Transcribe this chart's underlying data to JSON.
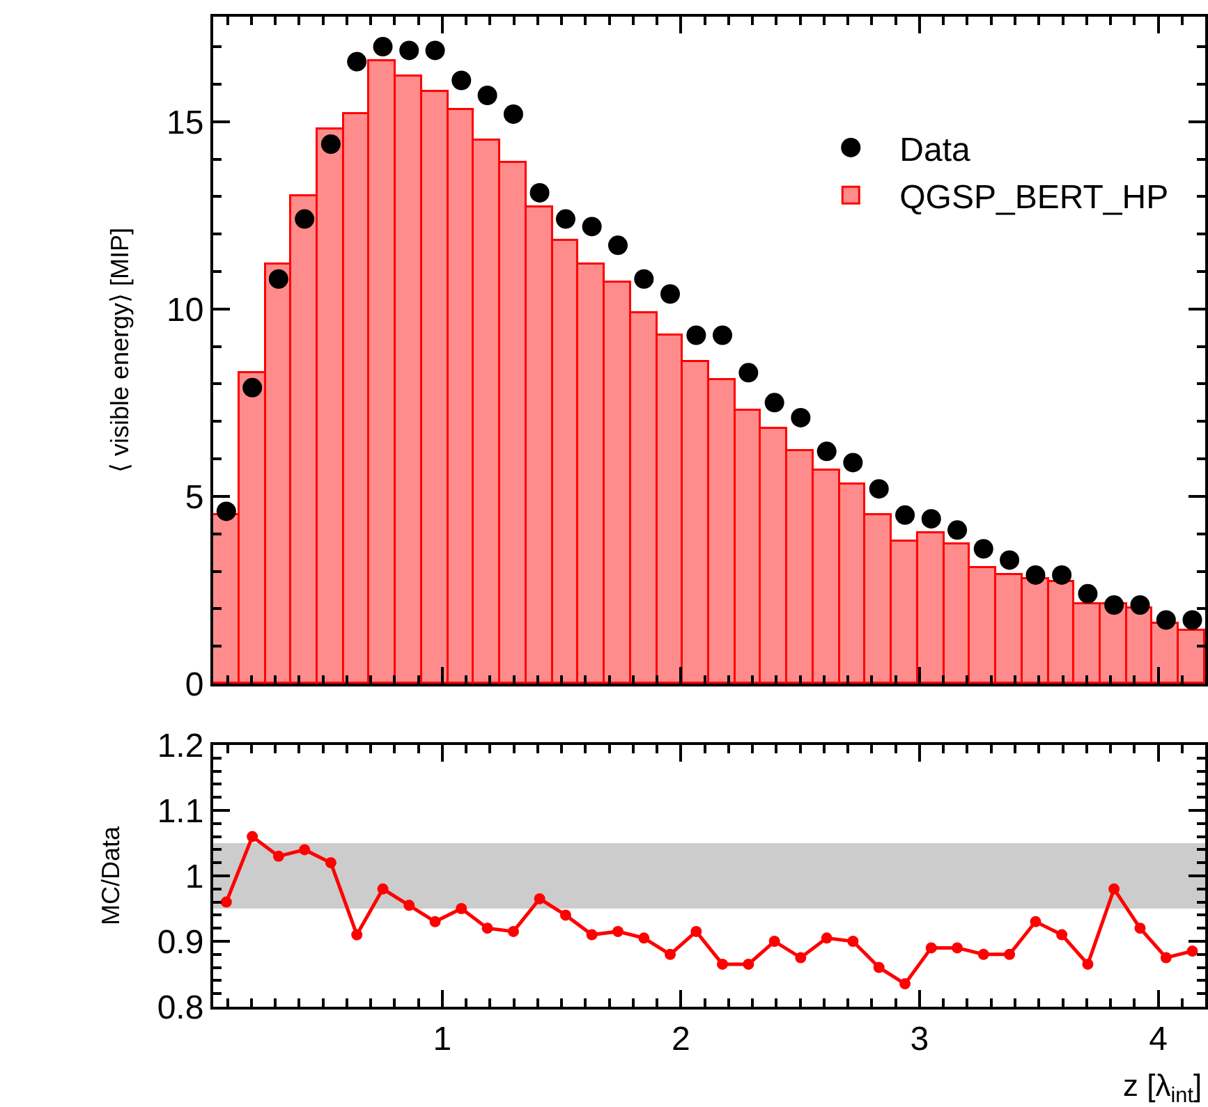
{
  "chart_data": [
    {
      "type": "histogram",
      "ylabel": "⟨ visible energy⟩ [MIP]",
      "bins": [
        0.04,
        0.149,
        0.259,
        0.368,
        0.478,
        0.587,
        0.696,
        0.806,
        0.915,
        1.025,
        1.134,
        1.243,
        1.353,
        1.462,
        1.572,
        1.681,
        1.79,
        1.9,
        2.009,
        2.119,
        2.228,
        2.337,
        2.447,
        2.556,
        2.666,
        2.775,
        2.884,
        2.994,
        3.103,
        3.213,
        3.322,
        3.431,
        3.541,
        3.65,
        3.76,
        3.869,
        3.978,
        4.088,
        4.197
      ],
      "series": [
        {
          "name": "Data",
          "type": "scatter",
          "color": "#000000",
          "marker": "circle",
          "x": [
            0.095,
            0.204,
            0.314,
            0.423,
            0.533,
            0.642,
            0.751,
            0.861,
            0.97,
            1.08,
            1.189,
            1.298,
            1.408,
            1.517,
            1.627,
            1.736,
            1.845,
            1.955,
            2.064,
            2.174,
            2.283,
            2.392,
            2.502,
            2.611,
            2.721,
            2.83,
            2.939,
            3.049,
            3.158,
            3.268,
            3.377,
            3.486,
            3.596,
            3.705,
            3.815,
            3.924,
            4.033,
            4.143
          ],
          "values": [
            4.6,
            7.9,
            10.8,
            12.4,
            14.4,
            16.6,
            17.0,
            16.9,
            16.9,
            16.1,
            15.7,
            15.2,
            13.1,
            12.4,
            12.2,
            11.7,
            10.8,
            10.4,
            9.3,
            9.3,
            8.3,
            7.5,
            7.1,
            6.2,
            5.9,
            5.2,
            4.5,
            4.4,
            4.1,
            3.6,
            3.3,
            2.9,
            2.9,
            2.4,
            2.1,
            2.1,
            1.7,
            1.7
          ]
        },
        {
          "name": "QGSP_BERT_HP",
          "type": "histogram",
          "color": "#ff0000",
          "values": [
            4.5,
            8.3,
            11.2,
            13.0,
            14.8,
            15.2,
            16.6,
            16.2,
            15.8,
            15.3,
            14.5,
            13.9,
            12.7,
            11.8,
            11.2,
            10.7,
            9.9,
            9.3,
            8.6,
            8.1,
            7.3,
            6.8,
            6.2,
            5.7,
            5.3,
            4.5,
            3.8,
            4.0,
            3.7,
            3.1,
            2.9,
            2.8,
            2.7,
            2.1,
            2.1,
            2.0,
            1.6,
            1.4
          ]
        }
      ],
      "xlim": [
        0.04,
        4.197
      ],
      "xticks": [
        1,
        2,
        3,
        4
      ],
      "ylim": [
        0,
        17.8
      ],
      "yticks": [
        0,
        5,
        10,
        15
      ],
      "tick_labels": "y",
      "legend": "top right",
      "grid": false
    },
    {
      "type": "line",
      "xlabel": "z [λ$_{int}$]",
      "ylabel": "MC/Data",
      "x": [
        0.095,
        0.204,
        0.314,
        0.423,
        0.533,
        0.642,
        0.751,
        0.861,
        0.97,
        1.08,
        1.189,
        1.298,
        1.408,
        1.517,
        1.627,
        1.736,
        1.845,
        1.955,
        2.064,
        2.174,
        2.283,
        2.392,
        2.502,
        2.611,
        2.721,
        2.83,
        2.939,
        3.049,
        3.158,
        3.268,
        3.377,
        3.486,
        3.596,
        3.705,
        3.815,
        3.924,
        4.033,
        4.143
      ],
      "series": [
        {
          "color": "#ff0000",
          "values": [
            0.96,
            1.06,
            1.03,
            1.04,
            1.02,
            0.91,
            0.98,
            0.955,
            0.93,
            0.95,
            0.92,
            0.915,
            0.965,
            0.94,
            0.91,
            0.915,
            0.905,
            0.88,
            0.915,
            0.865,
            0.865,
            0.9,
            0.875,
            0.905,
            0.9,
            0.86,
            0.835,
            0.89,
            0.89,
            0.88,
            0.88,
            0.93,
            0.91,
            0.865,
            0.98,
            0.92,
            0.875,
            0.885
          ]
        }
      ],
      "bands": [
        {
          "axis": "y",
          "from": 0.95,
          "to": 1.05,
          "color": "#cccccc"
        }
      ],
      "marker": "circle",
      "line_style": "solid",
      "xlim": [
        0.04,
        4.197
      ],
      "xticks": [
        1,
        2,
        3,
        4
      ],
      "ylim": [
        0.8,
        1.2
      ],
      "yticks": [
        {
          "value": 0.8,
          "label": "0.8"
        },
        {
          "value": 0.9,
          "label": "0.9"
        },
        1,
        {
          "value": 1.1,
          "label": "1.1"
        },
        {
          "value": 1.2,
          "label": "1.2"
        }
      ],
      "grid": false
    }
  ]
}
